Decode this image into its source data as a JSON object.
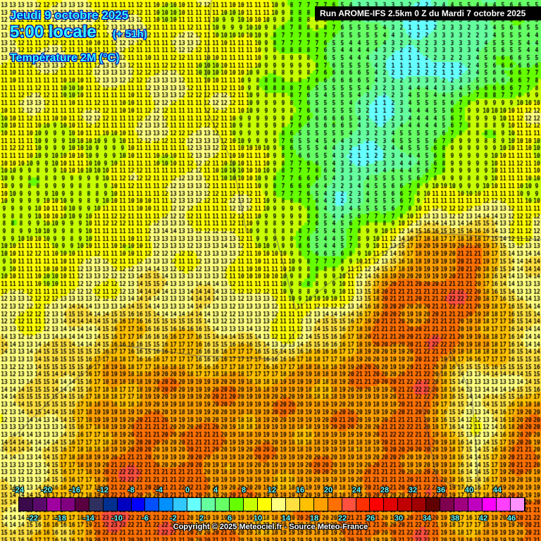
{
  "header": {
    "date": "Jeudi 9 octobre 2025",
    "time": "5:00 locale",
    "lead": "(+ 51h)",
    "parameter": "Température 2M (°C)",
    "run": "Run AROME-IFS 2.5km 0 Z du Mardi 7 octobre 2025"
  },
  "field": {
    "unit": "°C",
    "coarse_values": [
      [
        12,
        12,
        12,
        11,
        11,
        10,
        8,
        6,
        3,
        2,
        4,
        5
      ],
      [
        12,
        11,
        12,
        12,
        11,
        10,
        8,
        6,
        3,
        1,
        3,
        6
      ],
      [
        11,
        11,
        11,
        12,
        12,
        10,
        7,
        5,
        2,
        5,
        8,
        11
      ],
      [
        10,
        9,
        10,
        11,
        12,
        10,
        7,
        3,
        2,
        6,
        9,
        10
      ],
      [
        9,
        9,
        10,
        12,
        12,
        11,
        8,
        3,
        5,
        10,
        11,
        11
      ],
      [
        10,
        10,
        11,
        12,
        13,
        11,
        8,
        5,
        12,
        19,
        20,
        13
      ],
      [
        11,
        12,
        13,
        14,
        13,
        12,
        10,
        9,
        20,
        21,
        21,
        13
      ],
      [
        13,
        14,
        16,
        16,
        15,
        14,
        12,
        17,
        20,
        21,
        20,
        15
      ],
      [
        14,
        15,
        18,
        19,
        19,
        19,
        19,
        19,
        20,
        21,
        12,
        15
      ],
      [
        13,
        15,
        19,
        20,
        20,
        19,
        19,
        19,
        20,
        21,
        11,
        20
      ],
      [
        13,
        16,
        21,
        21,
        20,
        19,
        19,
        19,
        20,
        21,
        15,
        20
      ],
      [
        15,
        17,
        22,
        21,
        20,
        19,
        19,
        20,
        20,
        21,
        17,
        21
      ]
    ]
  },
  "legend": {
    "min": -24,
    "step": 2,
    "colors": [
      "#3a0a4a",
      "#5a0a6a",
      "#a000a0",
      "#800080",
      "#5a0040",
      "#303060",
      "#003090",
      "#0000c0",
      "#0000ff",
      "#0050ff",
      "#0090ff",
      "#30c8ff",
      "#66ffff",
      "#66ffa0",
      "#66ff66",
      "#66ff00",
      "#c8ff00",
      "#ffff00",
      "#ffff80",
      "#ffe040",
      "#ffc000",
      "#ffa000",
      "#ff7000",
      "#ff5040",
      "#ff3000",
      "#ff0000",
      "#e00000",
      "#c00000",
      "#a00000",
      "#600000",
      "#800050",
      "#a00080",
      "#c000c0",
      "#ff00ff",
      "#ff40ff",
      "#ff90ff"
    ],
    "top_labels": [
      "-24",
      "-20",
      "-16",
      "-12",
      "-8",
      "-4",
      "0",
      "4",
      "8",
      "12",
      "16",
      "20",
      "24",
      "28",
      "32",
      "36",
      "40",
      "44"
    ],
    "bottom_labels": [
      "-22",
      "-18",
      "-14",
      "-10",
      "-6",
      "-2",
      "2",
      "6",
      "10",
      "14",
      "18",
      "22",
      "26",
      "30",
      "34",
      "38",
      "42",
      "46"
    ]
  },
  "footer": {
    "copyright": "Copyright © 2025 Meteociel.fr - Source Meteo-France"
  }
}
